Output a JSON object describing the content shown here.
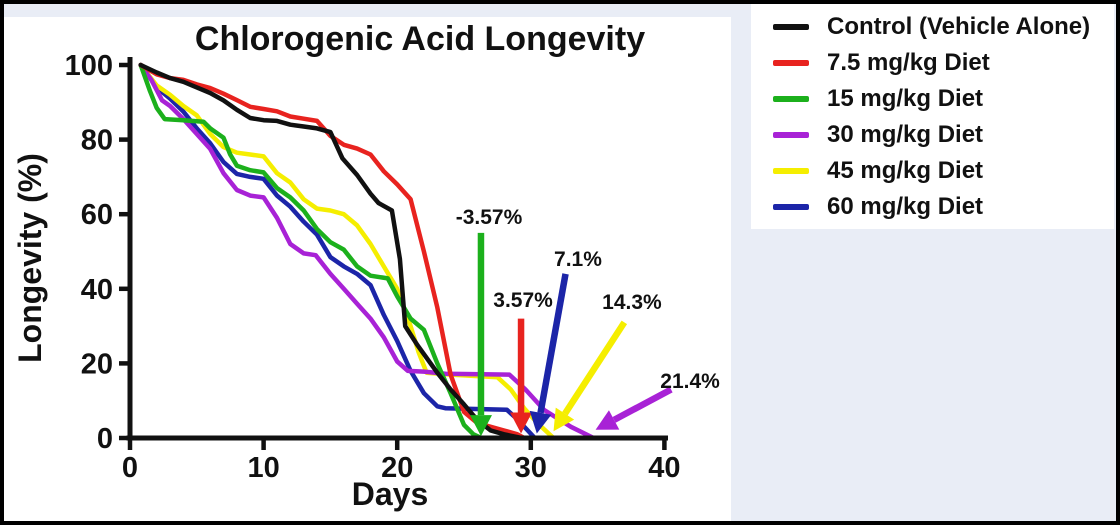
{
  "frame": {
    "background_color": "#e9edf6",
    "border_color": "#000000",
    "panel_color": "#ffffff"
  },
  "chart": {
    "title": "Chlorogenic Acid Longevity",
    "xlabel": "Days",
    "ylabel": "Longevity (%)"
  },
  "chart_data": {
    "type": "line",
    "title": "Chlorogenic Acid Longevity",
    "xlabel": "Days",
    "ylabel": "Longevity (%)",
    "xlim": [
      0,
      40
    ],
    "ylim": [
      0,
      100
    ],
    "x_ticks": [
      0,
      10,
      20,
      30,
      40
    ],
    "y_ticks": [
      0,
      20,
      40,
      60,
      80,
      100
    ],
    "grid": false,
    "legend_position": "outside-top-right",
    "axis_color": "#111111",
    "series": [
      {
        "name": "60 mg/kg Diet",
        "color": "#1c25a8",
        "points": [
          [
            0.8,
            100
          ],
          [
            2,
            94
          ],
          [
            3,
            91
          ],
          [
            4,
            87.5
          ],
          [
            5,
            83
          ],
          [
            6,
            79
          ],
          [
            7,
            74
          ],
          [
            8,
            70.8
          ],
          [
            9,
            70
          ],
          [
            10,
            69.5
          ],
          [
            11,
            65
          ],
          [
            12,
            62
          ],
          [
            13,
            58
          ],
          [
            14,
            54.5
          ],
          [
            15,
            48.5
          ],
          [
            16,
            46
          ],
          [
            17,
            44
          ],
          [
            18,
            41
          ],
          [
            19,
            33
          ],
          [
            20,
            26
          ],
          [
            21,
            18
          ],
          [
            22,
            12
          ],
          [
            23,
            8.5
          ],
          [
            23.6,
            8
          ],
          [
            28.2,
            7.6
          ],
          [
            29,
            5
          ],
          [
            30.3,
            0
          ]
        ]
      },
      {
        "name": "45 mg/kg Diet",
        "color": "#f5ee00",
        "points": [
          [
            0.8,
            100
          ],
          [
            2,
            94.5
          ],
          [
            3,
            92
          ],
          [
            4,
            89
          ],
          [
            5,
            86.5
          ],
          [
            6,
            81.5
          ],
          [
            7,
            78
          ],
          [
            8,
            76.5
          ],
          [
            9,
            76
          ],
          [
            10,
            75.5
          ],
          [
            11,
            71
          ],
          [
            12,
            68.5
          ],
          [
            13,
            64
          ],
          [
            14,
            61.5
          ],
          [
            15,
            61
          ],
          [
            16,
            60
          ],
          [
            17,
            57
          ],
          [
            18,
            52
          ],
          [
            19,
            46
          ],
          [
            20,
            40
          ],
          [
            21,
            30
          ],
          [
            21.6,
            23
          ],
          [
            22.2,
            17.5
          ],
          [
            24,
            17
          ],
          [
            27.5,
            16.3
          ],
          [
            28.5,
            13
          ],
          [
            29.5,
            8
          ],
          [
            30.5,
            4
          ],
          [
            31.7,
            0
          ]
        ]
      },
      {
        "name": "30 mg/kg Diet",
        "color": "#a822d6",
        "points": [
          [
            0.8,
            100
          ],
          [
            1.6,
            96
          ],
          [
            2.4,
            90.5
          ],
          [
            3,
            89
          ],
          [
            4,
            85.5
          ],
          [
            5,
            81.5
          ],
          [
            6,
            77.5
          ],
          [
            7,
            71
          ],
          [
            8,
            66.5
          ],
          [
            9,
            65
          ],
          [
            10,
            64.5
          ],
          [
            11,
            59
          ],
          [
            12,
            52
          ],
          [
            13,
            49.5
          ],
          [
            13.9,
            49
          ],
          [
            15,
            44
          ],
          [
            16,
            40
          ],
          [
            17,
            36
          ],
          [
            18,
            32
          ],
          [
            19,
            27
          ],
          [
            20,
            20.5
          ],
          [
            20.8,
            18
          ],
          [
            22,
            17.8
          ],
          [
            23.6,
            17.2
          ],
          [
            28.4,
            17
          ],
          [
            29.6,
            13
          ],
          [
            31,
            7.5
          ],
          [
            33,
            3
          ],
          [
            34.7,
            0
          ]
        ]
      },
      {
        "name": "15 mg/kg Diet",
        "color": "#1cb01c",
        "points": [
          [
            0.8,
            100
          ],
          [
            1.5,
            93
          ],
          [
            2,
            88.5
          ],
          [
            2.6,
            85.5
          ],
          [
            4,
            85.2
          ],
          [
            5.5,
            84.8
          ],
          [
            6,
            83
          ],
          [
            7,
            80.5
          ],
          [
            7.5,
            76
          ],
          [
            8,
            73
          ],
          [
            9,
            71.8
          ],
          [
            10,
            71.2
          ],
          [
            11,
            67
          ],
          [
            12,
            64.5
          ],
          [
            13,
            61
          ],
          [
            14,
            56
          ],
          [
            15,
            52.5
          ],
          [
            16,
            50.5
          ],
          [
            17,
            46
          ],
          [
            18,
            43.5
          ],
          [
            19.3,
            42.8
          ],
          [
            20,
            38
          ],
          [
            21,
            32
          ],
          [
            22,
            29
          ],
          [
            23,
            20
          ],
          [
            24,
            12
          ],
          [
            25,
            3.5
          ],
          [
            25.7,
            1
          ],
          [
            26.3,
            0
          ]
        ]
      },
      {
        "name": "7.5 mg/kg Diet",
        "color": "#e8231f",
        "points": [
          [
            0.8,
            100
          ],
          [
            2,
            97.5
          ],
          [
            3,
            96.5
          ],
          [
            4,
            96
          ],
          [
            5,
            94.8
          ],
          [
            6,
            93.8
          ],
          [
            7,
            92.3
          ],
          [
            8,
            90.6
          ],
          [
            9,
            88.8
          ],
          [
            10,
            88.2
          ],
          [
            11,
            87.6
          ],
          [
            12,
            86.2
          ],
          [
            13,
            85.6
          ],
          [
            14,
            85
          ],
          [
            15,
            81
          ],
          [
            16,
            78.6
          ],
          [
            17,
            77.6
          ],
          [
            18,
            76
          ],
          [
            19,
            71.5
          ],
          [
            20,
            68
          ],
          [
            21,
            64
          ],
          [
            22,
            50
          ],
          [
            23,
            35
          ],
          [
            24,
            17
          ],
          [
            25,
            7
          ],
          [
            26,
            4
          ],
          [
            27,
            3
          ],
          [
            28,
            2
          ],
          [
            29,
            1
          ],
          [
            29.5,
            0
          ]
        ]
      },
      {
        "name": "Control (Vehicle Alone)",
        "color": "#111111",
        "points": [
          [
            0.8,
            100
          ],
          [
            2,
            98
          ],
          [
            3,
            96.5
          ],
          [
            4,
            95.5
          ],
          [
            5,
            94
          ],
          [
            6,
            92.5
          ],
          [
            7,
            90.5
          ],
          [
            8,
            88
          ],
          [
            9,
            85.8
          ],
          [
            10,
            85.2
          ],
          [
            11,
            85
          ],
          [
            12,
            84
          ],
          [
            13,
            83.5
          ],
          [
            14,
            83
          ],
          [
            15,
            82
          ],
          [
            15.9,
            75
          ],
          [
            17,
            70.5
          ],
          [
            18,
            65.5
          ],
          [
            18.6,
            63
          ],
          [
            19.6,
            61
          ],
          [
            20.2,
            48
          ],
          [
            20.6,
            30
          ],
          [
            21.5,
            25
          ],
          [
            23,
            17.5
          ],
          [
            24,
            13
          ],
          [
            25,
            9
          ],
          [
            26,
            4.8
          ],
          [
            27,
            2
          ],
          [
            28,
            1
          ],
          [
            29.3,
            0
          ]
        ]
      }
    ],
    "annotations": [
      {
        "label": "-3.57%",
        "color": "#1cb01c",
        "label_day": 26.87,
        "label_pct": 59.2,
        "from_day": 26.27,
        "from_pct": 55.0,
        "to_day": 26.27,
        "to_pct": 0.5
      },
      {
        "label": "3.57%",
        "color": "#e8231f",
        "label_day": 29.42,
        "label_pct": 37.0,
        "from_day": 29.27,
        "from_pct": 32.0,
        "to_day": 29.27,
        "to_pct": 1.2
      },
      {
        "label": "7.1%",
        "color": "#1c25a8",
        "label_day": 33.53,
        "label_pct": 48.0,
        "from_day": 32.6,
        "from_pct": 44.0,
        "to_day": 30.45,
        "to_pct": 1.2
      },
      {
        "label": "14.3%",
        "color": "#f5ee00",
        "label_day": 37.57,
        "label_pct": 36.5,
        "from_day": 37.0,
        "from_pct": 31.0,
        "to_day": 31.7,
        "to_pct": 1.8
      },
      {
        "label": "21.4%",
        "color": "#a822d6",
        "label_day": 41.92,
        "label_pct": 15.3,
        "from_day": 40.5,
        "from_pct": 13.0,
        "to_day": 34.85,
        "to_pct": 2.2
      }
    ],
    "legend_order": [
      "Control (Vehicle Alone)",
      "7.5 mg/kg Diet",
      "15 mg/kg Diet",
      "30 mg/kg Diet",
      "45 mg/kg Diet",
      "60 mg/kg Diet"
    ]
  }
}
